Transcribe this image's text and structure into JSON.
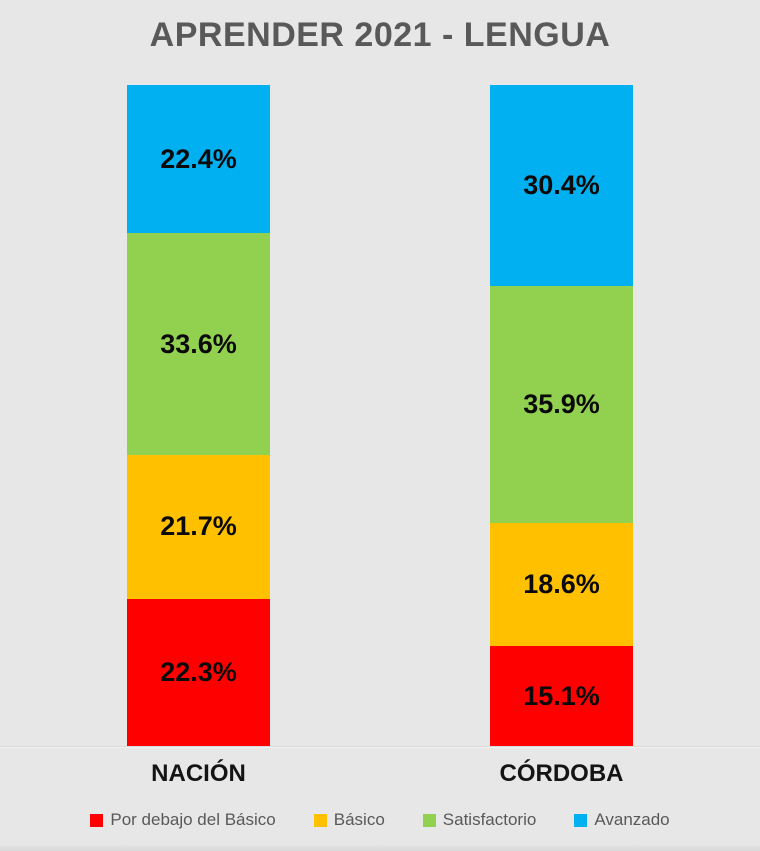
{
  "chart_data": {
    "type": "bar",
    "stacked": true,
    "orientation": "vertical",
    "title": "APRENDER 2021 - LENGUA",
    "categories": [
      "NACIÓN",
      "CÓRDOBA"
    ],
    "series": [
      {
        "name": "Por debajo del Básico",
        "color": "#FF0000",
        "values": [
          22.3,
          15.1
        ]
      },
      {
        "name": "Básico",
        "color": "#FFC000",
        "values": [
          21.7,
          18.6
        ]
      },
      {
        "name": "Satisfactorio",
        "color": "#92D050",
        "values": [
          33.6,
          35.9
        ]
      },
      {
        "name": "Avanzado",
        "color": "#00B0F0",
        "values": [
          22.4,
          30.4
        ]
      }
    ],
    "value_suffix": "%",
    "ylim": [
      0,
      100
    ],
    "grid": false,
    "legend_position": "bottom",
    "data_labels": "inside-center"
  },
  "colors": {
    "background": "#E7E7E7",
    "title_text": "#595959",
    "axis_label_text": "#141414",
    "legend_text": "#595959",
    "axis_line": "#D9D9D9"
  }
}
